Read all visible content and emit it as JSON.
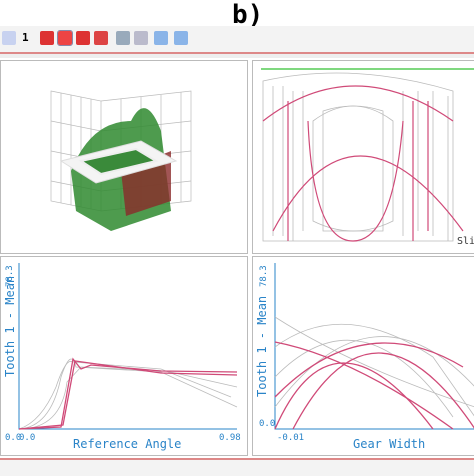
{
  "header": {
    "label": "b)",
    "toolbar_number": "1"
  },
  "panels": [
    {
      "name": "3d-view"
    },
    {
      "name": "parallel-view",
      "label": "Sli"
    },
    {
      "name": "reference-angle-plot",
      "x_label": "Reference Angle",
      "y_label": "Tooth 1 - Mean",
      "x_ticks": [
        "0.0",
        "0.98"
      ],
      "y_ticks": [
        "78.3",
        "0.0"
      ]
    },
    {
      "name": "gear-width-plot",
      "x_label": "Gear Width",
      "y_label": "Tooth 1 - Mean",
      "x_ticks": [
        "-0.01"
      ],
      "y_ticks": [
        "78.3",
        "0.0"
      ]
    }
  ]
}
